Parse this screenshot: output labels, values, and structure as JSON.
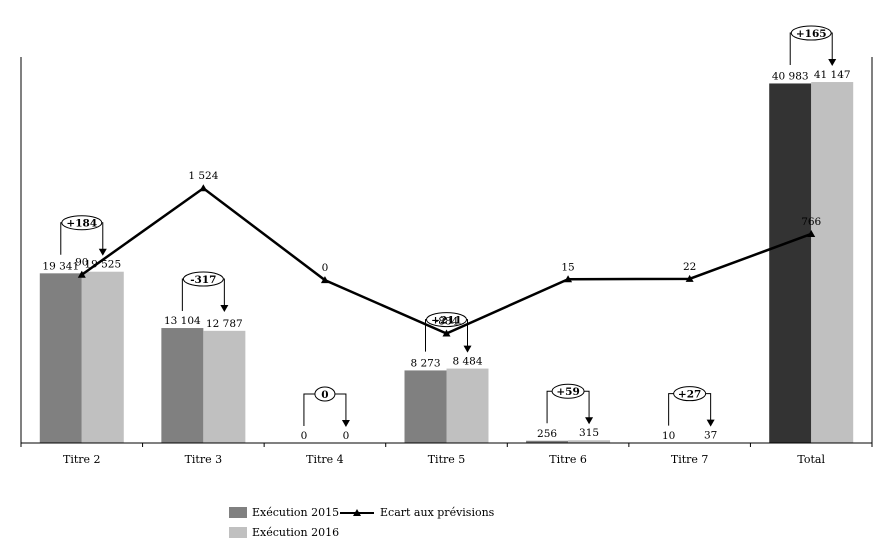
{
  "chart_data": {
    "type": "bar",
    "categories": [
      "Titre 2",
      "Titre 3",
      "Titre 4",
      "Titre 5",
      "Titre 6",
      "Titre 7",
      "Total"
    ],
    "series": [
      {
        "name": "Exécution 2015",
        "values": [
          19341,
          13104,
          0,
          8273,
          256,
          10,
          40983
        ],
        "labels": [
          "19 341",
          "13 104",
          "0",
          "8 273",
          "256",
          "10",
          "40 983"
        ],
        "color": "#808080"
      },
      {
        "name": "Exécution 2016",
        "values": [
          19525,
          12787,
          0,
          8484,
          315,
          37,
          41147
        ],
        "labels": [
          "19 525",
          "12 787",
          "0",
          "8 484",
          "315",
          "37",
          "41 147"
        ],
        "color": "#c0c0c0"
      }
    ],
    "total_color_2015": "#333333",
    "line_series": {
      "name": "Ecart aux prévisions",
      "values": [
        90,
        1524,
        0,
        -884,
        15,
        22,
        766
      ],
      "labels": [
        "90",
        "1 524",
        "0",
        "-884",
        "15",
        "22",
        "766"
      ]
    },
    "change_callouts": [
      "+184",
      "-317",
      "0",
      "+211",
      "+59",
      "+27",
      "+165"
    ],
    "ylim": [
      0,
      44000
    ],
    "line_ylim": [
      -2700,
      3700
    ],
    "legend_position": "bottom-left",
    "grid": false
  }
}
